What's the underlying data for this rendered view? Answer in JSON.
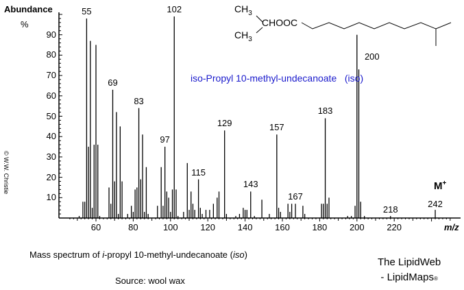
{
  "chart_data": {
    "type": "bar",
    "title": "iso-Propyl 10-methyl-undecanoate   (iso)",
    "xlabel": "m/z",
    "ylabel": "Abundance %",
    "xlim": [
      44,
      250
    ],
    "ylim": [
      0,
      100
    ],
    "x_ticks": [
      60,
      80,
      100,
      120,
      140,
      160,
      180,
      200,
      220
    ],
    "y_ticks": [
      10,
      20,
      30,
      40,
      50,
      60,
      70,
      80,
      90
    ],
    "grid": false,
    "peaks": [
      {
        "mz": 51,
        "y": 1
      },
      {
        "mz": 53,
        "y": 8
      },
      {
        "mz": 54,
        "y": 8
      },
      {
        "mz": 55,
        "y": 98
      },
      {
        "mz": 56,
        "y": 35
      },
      {
        "mz": 57,
        "y": 87
      },
      {
        "mz": 58,
        "y": 5
      },
      {
        "mz": 59,
        "y": 36
      },
      {
        "mz": 60,
        "y": 85
      },
      {
        "mz": 61,
        "y": 36
      },
      {
        "mz": 62,
        "y": 1
      },
      {
        "mz": 67,
        "y": 15
      },
      {
        "mz": 68,
        "y": 7
      },
      {
        "mz": 69,
        "y": 63
      },
      {
        "mz": 70,
        "y": 18
      },
      {
        "mz": 71,
        "y": 52
      },
      {
        "mz": 72,
        "y": 2
      },
      {
        "mz": 73,
        "y": 45
      },
      {
        "mz": 74,
        "y": 18
      },
      {
        "mz": 77,
        "y": 2
      },
      {
        "mz": 79,
        "y": 6
      },
      {
        "mz": 80,
        "y": 3
      },
      {
        "mz": 81,
        "y": 14
      },
      {
        "mz": 82,
        "y": 15
      },
      {
        "mz": 83,
        "y": 54
      },
      {
        "mz": 84,
        "y": 19
      },
      {
        "mz": 85,
        "y": 41
      },
      {
        "mz": 86,
        "y": 3
      },
      {
        "mz": 87,
        "y": 25
      },
      {
        "mz": 88,
        "y": 2
      },
      {
        "mz": 93,
        "y": 6
      },
      {
        "mz": 95,
        "y": 25
      },
      {
        "mz": 96,
        "y": 6
      },
      {
        "mz": 97,
        "y": 35
      },
      {
        "mz": 98,
        "y": 13
      },
      {
        "mz": 99,
        "y": 10
      },
      {
        "mz": 100,
        "y": 3
      },
      {
        "mz": 101,
        "y": 14
      },
      {
        "mz": 102,
        "y": 99
      },
      {
        "mz": 103,
        "y": 14
      },
      {
        "mz": 104,
        "y": 1
      },
      {
        "mz": 107,
        "y": 3
      },
      {
        "mz": 109,
        "y": 27
      },
      {
        "mz": 110,
        "y": 4
      },
      {
        "mz": 111,
        "y": 13
      },
      {
        "mz": 112,
        "y": 7
      },
      {
        "mz": 113,
        "y": 4
      },
      {
        "mz": 115,
        "y": 19
      },
      {
        "mz": 116,
        "y": 5
      },
      {
        "mz": 117,
        "y": 2
      },
      {
        "mz": 119,
        "y": 4
      },
      {
        "mz": 121,
        "y": 4
      },
      {
        "mz": 123,
        "y": 7
      },
      {
        "mz": 125,
        "y": 10
      },
      {
        "mz": 126,
        "y": 13
      },
      {
        "mz": 129,
        "y": 43
      },
      {
        "mz": 130,
        "y": 2
      },
      {
        "mz": 135,
        "y": 1
      },
      {
        "mz": 137,
        "y": 2
      },
      {
        "mz": 139,
        "y": 5
      },
      {
        "mz": 140,
        "y": 4
      },
      {
        "mz": 141,
        "y": 4
      },
      {
        "mz": 143,
        "y": 13
      },
      {
        "mz": 145,
        "y": 1
      },
      {
        "mz": 149,
        "y": 9
      },
      {
        "mz": 153,
        "y": 2
      },
      {
        "mz": 157,
        "y": 41
      },
      {
        "mz": 158,
        "y": 5
      },
      {
        "mz": 159,
        "y": 3
      },
      {
        "mz": 163,
        "y": 7
      },
      {
        "mz": 164,
        "y": 3
      },
      {
        "mz": 165,
        "y": 7
      },
      {
        "mz": 167,
        "y": 7
      },
      {
        "mz": 171,
        "y": 6
      },
      {
        "mz": 172,
        "y": 2
      },
      {
        "mz": 181,
        "y": 7
      },
      {
        "mz": 182,
        "y": 7
      },
      {
        "mz": 183,
        "y": 49
      },
      {
        "mz": 184,
        "y": 7
      },
      {
        "mz": 185,
        "y": 10
      },
      {
        "mz": 195,
        "y": 1
      },
      {
        "mz": 197,
        "y": 1
      },
      {
        "mz": 199,
        "y": 6
      },
      {
        "mz": 200,
        "y": 90
      },
      {
        "mz": 201,
        "y": 73
      },
      {
        "mz": 202,
        "y": 8
      },
      {
        "mz": 204,
        "y": 1
      },
      {
        "mz": 218,
        "y": 1
      },
      {
        "mz": 242,
        "y": 4
      }
    ],
    "peak_labels": [
      {
        "mz": 55,
        "text": "55"
      },
      {
        "mz": 69,
        "text": "69"
      },
      {
        "mz": 83,
        "text": "83"
      },
      {
        "mz": 97,
        "text": "97"
      },
      {
        "mz": 102,
        "text": "102"
      },
      {
        "mz": 115,
        "text": "115"
      },
      {
        "mz": 129,
        "text": "129"
      },
      {
        "mz": 143,
        "text": "143"
      },
      {
        "mz": 157,
        "text": "157"
      },
      {
        "mz": 167,
        "text": "167"
      },
      {
        "mz": 183,
        "text": "183"
      },
      {
        "mz": 200,
        "text": "200"
      },
      {
        "mz": 218,
        "text": "218"
      },
      {
        "mz": 242,
        "text": "242"
      }
    ],
    "annotations": [
      "M+"
    ]
  },
  "labels": {
    "ylabel": "Abundance",
    "ypct": "%",
    "xunit": "m/z",
    "compound": "iso-Propyl 10-methyl-undecanoate   (iso)",
    "molecular_ion": "M",
    "molecular_ion_sup": "+",
    "copyright": "© W.W. Christie",
    "caption_pre": "Mass spectrum of ",
    "caption_i": "i",
    "caption_mid": "-propyl 10-methyl-undecanoate (",
    "caption_iso": "iso",
    "caption_post": ")",
    "source": "Source: wool wax",
    "brand_line1": "The LipidWeb",
    "brand_line2": "- LipidMaps",
    "brand_mark": "®"
  },
  "structure": {
    "ch3_top": "CH",
    "ch3_bottom": "CH",
    "sub3": "3",
    "ester": "CHOOC"
  },
  "colors": {
    "compound_title": "#1a1acc",
    "axis": "#000000"
  }
}
